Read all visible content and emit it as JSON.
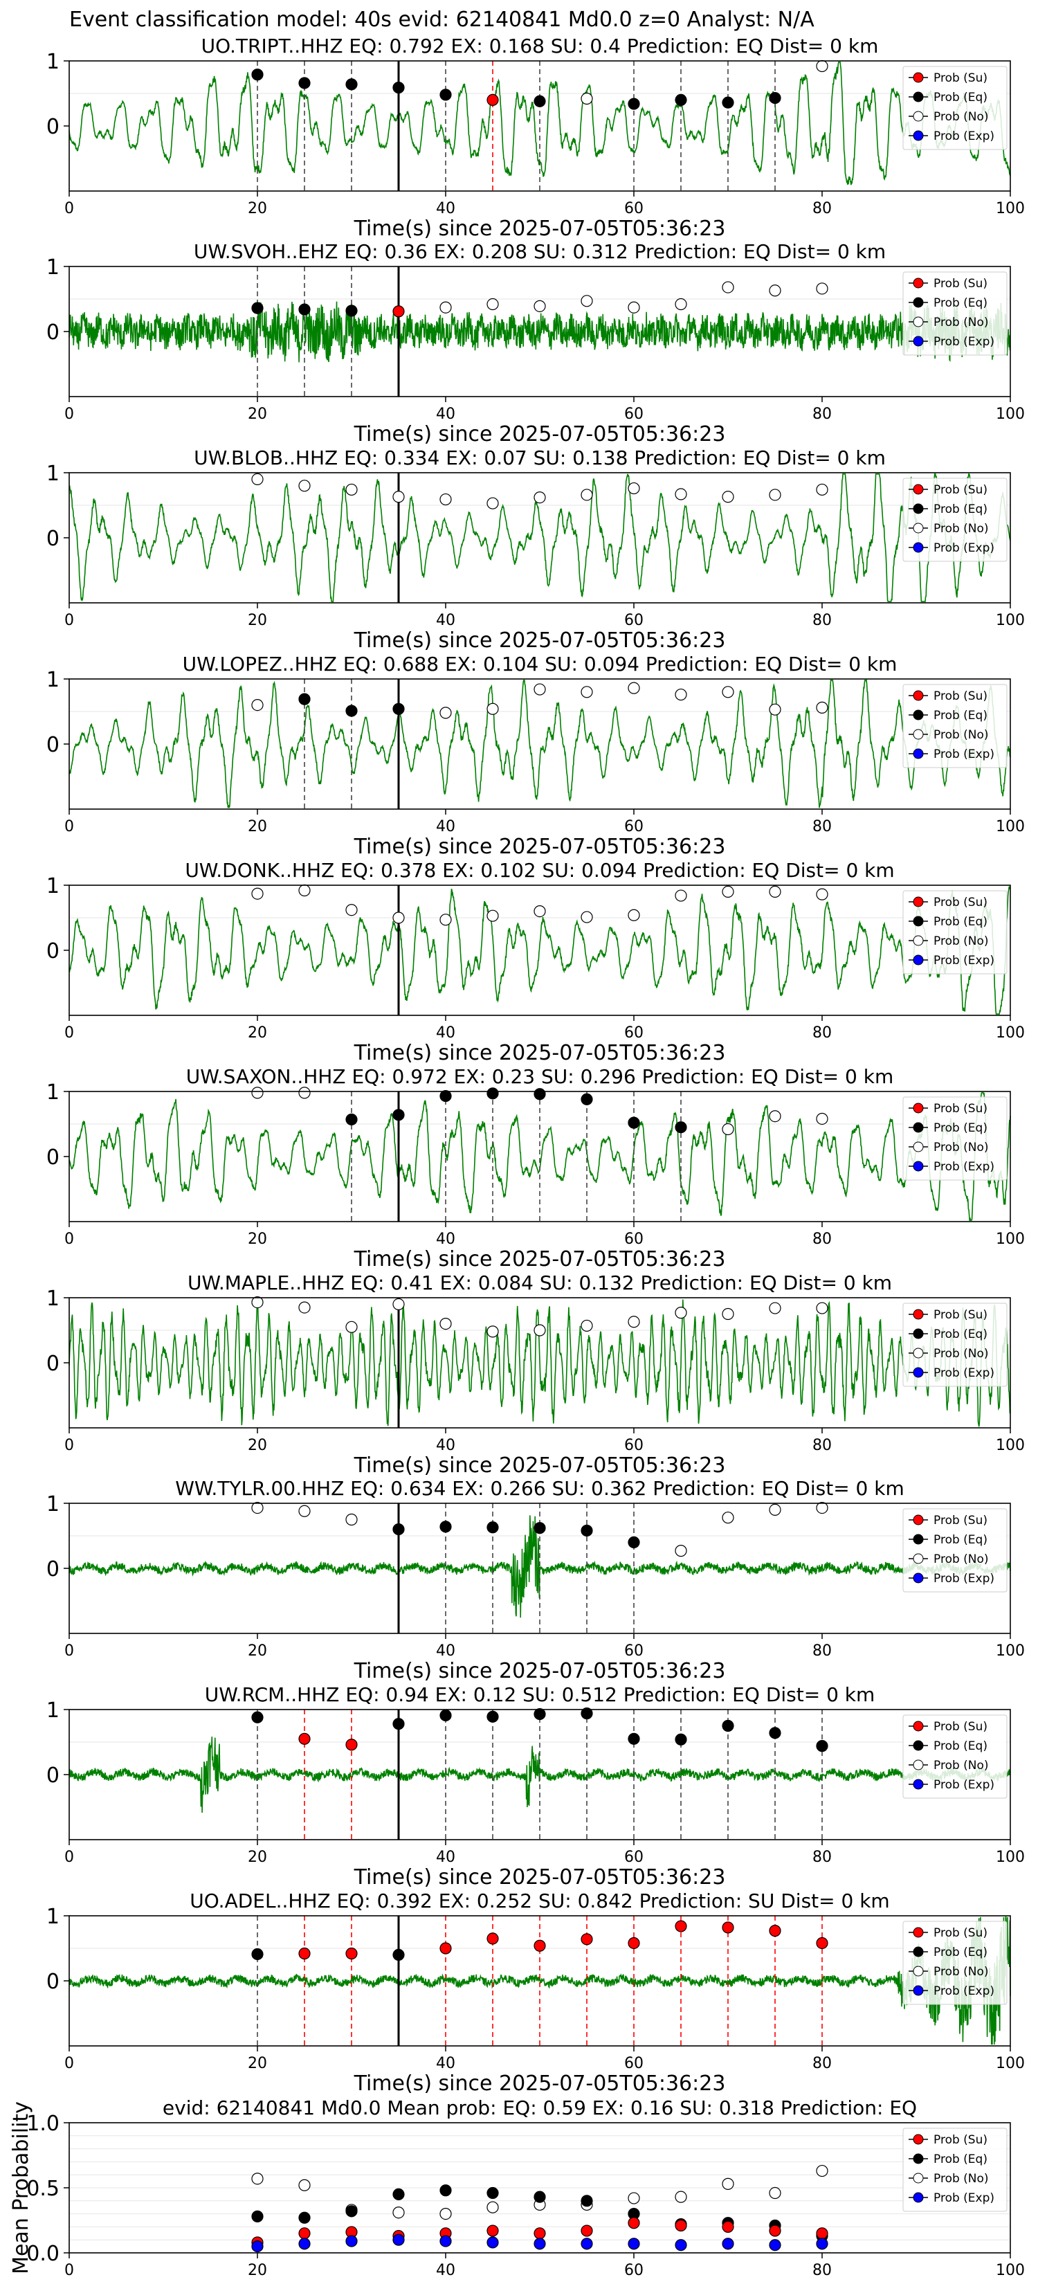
{
  "figure_title": "Event classification model: 40s evid: 62140841 Md0.0 z=0 Analyst: N/A",
  "legend_labels": [
    "Prob (Su)",
    "Prob (Eq)",
    "Prob (No)",
    "Prob (Exp)"
  ],
  "colors": {
    "su": "#ff0000",
    "eq": "#000000",
    "no": "#ffffff",
    "exp": "#0000ff",
    "trace": "#008000"
  },
  "chart_data": [
    {
      "type": "line",
      "title": "UO.TRIPT..HHZ   EQ: 0.792  EX: 0.168  SU: 0.4   Prediction: EQ    Dist= 0 km",
      "xlabel": "Time(s) since 2025-07-05T05:36:23",
      "ylabel": "",
      "xlim": [
        0,
        100
      ],
      "ylim": [
        -1,
        1
      ],
      "xticks": [
        0,
        20,
        40,
        60,
        80,
        100
      ],
      "yticks": [
        0,
        1
      ],
      "trace_style": "low",
      "arrival": 35,
      "markers": {
        "x": [
          20,
          25,
          30,
          35,
          40,
          45,
          50,
          55,
          60,
          65,
          70,
          75,
          80
        ],
        "type": [
          "eq",
          "eq",
          "eq",
          "eq",
          "eq",
          "su",
          "eq",
          "no",
          "eq",
          "eq",
          "eq",
          "eq",
          "no"
        ],
        "prob": [
          0.79,
          0.66,
          0.64,
          0.59,
          0.48,
          0.4,
          0.38,
          0.42,
          0.34,
          0.4,
          0.36,
          0.43,
          0.92
        ]
      }
    },
    {
      "type": "line",
      "title": "UW.SVOH..EHZ   EQ: 0.36  EX: 0.208  SU: 0.312   Prediction: EQ    Dist= 0 km",
      "xlabel": "Time(s) since 2025-07-05T05:36:23",
      "ylabel": "",
      "xlim": [
        0,
        100
      ],
      "ylim": [
        -1,
        1
      ],
      "xticks": [
        0,
        20,
        40,
        60,
        80,
        100
      ],
      "yticks": [
        0,
        1
      ],
      "trace_style": "noise",
      "arrival": 35,
      "markers": {
        "x": [
          20,
          25,
          30,
          35,
          40,
          45,
          50,
          55,
          60,
          65,
          70,
          75,
          80
        ],
        "type": [
          "eq",
          "eq",
          "eq",
          "su",
          "no",
          "no",
          "no",
          "no",
          "no",
          "no",
          "no",
          "no",
          "no"
        ],
        "prob": [
          0.36,
          0.34,
          0.32,
          0.31,
          0.37,
          0.42,
          0.39,
          0.47,
          0.37,
          0.42,
          0.68,
          0.63,
          0.66
        ]
      }
    },
    {
      "type": "line",
      "title": "UW.BLOB..HHZ   EQ: 0.334  EX: 0.07  SU: 0.138   Prediction: EQ    Dist= 0 km",
      "xlabel": "Time(s) since 2025-07-05T05:36:23",
      "ylabel": "",
      "xlim": [
        0,
        100
      ],
      "ylim": [
        -1,
        1
      ],
      "xticks": [
        0,
        20,
        40,
        60,
        80,
        100
      ],
      "yticks": [
        0,
        1
      ],
      "trace_style": "low",
      "arrival": 35,
      "markers": {
        "x": [
          20,
          25,
          30,
          35,
          40,
          45,
          50,
          55,
          60,
          65,
          70,
          75,
          80
        ],
        "type": [
          "no",
          "no",
          "no",
          "no",
          "no",
          "no",
          "no",
          "no",
          "no",
          "no",
          "no",
          "no",
          "no"
        ],
        "prob": [
          0.9,
          0.8,
          0.74,
          0.63,
          0.59,
          0.53,
          0.62,
          0.66,
          0.76,
          0.67,
          0.63,
          0.66,
          0.74
        ]
      }
    },
    {
      "type": "line",
      "title": "UW.LOPEZ..HHZ   EQ: 0.688  EX: 0.104  SU: 0.094   Prediction: EQ    Dist= 0 km",
      "xlabel": "Time(s) since 2025-07-05T05:36:23",
      "ylabel": "",
      "xlim": [
        0,
        100
      ],
      "ylim": [
        -1,
        1
      ],
      "xticks": [
        0,
        20,
        40,
        60,
        80,
        100
      ],
      "yticks": [
        0,
        1
      ],
      "trace_style": "low",
      "arrival": 35,
      "markers": {
        "x": [
          20,
          25,
          30,
          35,
          40,
          45,
          50,
          55,
          60,
          65,
          70,
          75,
          80
        ],
        "type": [
          "no",
          "eq",
          "eq",
          "eq",
          "no",
          "no",
          "no",
          "no",
          "no",
          "no",
          "no",
          "no",
          "no"
        ],
        "prob": [
          0.6,
          0.69,
          0.51,
          0.54,
          0.48,
          0.54,
          0.84,
          0.8,
          0.86,
          0.76,
          0.8,
          0.53,
          0.56
        ]
      }
    },
    {
      "type": "line",
      "title": "UW.DONK..HHZ   EQ: 0.378  EX: 0.102  SU: 0.094   Prediction: EQ    Dist= 0 km",
      "xlabel": "Time(s) since 2025-07-05T05:36:23",
      "ylabel": "",
      "xlim": [
        0,
        100
      ],
      "ylim": [
        -1,
        1
      ],
      "xticks": [
        0,
        20,
        40,
        60,
        80,
        100
      ],
      "yticks": [
        0,
        1
      ],
      "trace_style": "low",
      "arrival": 35,
      "markers": {
        "x": [
          20,
          25,
          30,
          35,
          40,
          45,
          50,
          55,
          60,
          65,
          70,
          75,
          80
        ],
        "type": [
          "no",
          "no",
          "no",
          "no",
          "no",
          "no",
          "no",
          "no",
          "no",
          "no",
          "no",
          "no",
          "no"
        ],
        "prob": [
          0.87,
          0.92,
          0.62,
          0.5,
          0.47,
          0.53,
          0.6,
          0.51,
          0.54,
          0.84,
          0.9,
          0.9,
          0.86
        ]
      }
    },
    {
      "type": "line",
      "title": "UW.SAXON..HHZ   EQ: 0.972  EX: 0.23  SU: 0.296   Prediction: EQ    Dist= 0 km",
      "xlabel": "Time(s) since 2025-07-05T05:36:23",
      "ylabel": "",
      "xlim": [
        0,
        100
      ],
      "ylim": [
        -1,
        1
      ],
      "xticks": [
        0,
        20,
        40,
        60,
        80,
        100
      ],
      "yticks": [
        0,
        1
      ],
      "trace_style": "low",
      "arrival": 35,
      "markers": {
        "x": [
          20,
          25,
          30,
          35,
          40,
          45,
          50,
          55,
          60,
          65,
          70,
          75,
          80
        ],
        "type": [
          "no",
          "no",
          "eq",
          "eq",
          "eq",
          "eq",
          "eq",
          "eq",
          "eq",
          "eq",
          "no",
          "no",
          "no"
        ],
        "prob": [
          0.98,
          0.98,
          0.57,
          0.64,
          0.93,
          0.97,
          0.96,
          0.88,
          0.52,
          0.45,
          0.42,
          0.62,
          0.58
        ]
      }
    },
    {
      "type": "line",
      "title": "UW.MAPLE..HHZ   EQ: 0.41  EX: 0.084  SU: 0.132   Prediction: EQ    Dist= 0 km",
      "xlabel": "Time(s) since 2025-07-05T05:36:23",
      "ylabel": "",
      "xlim": [
        0,
        100
      ],
      "ylim": [
        -1,
        1
      ],
      "xticks": [
        0,
        20,
        40,
        60,
        80,
        100
      ],
      "yticks": [
        0,
        1
      ],
      "trace_style": "high",
      "arrival": 35,
      "markers": {
        "x": [
          20,
          25,
          30,
          35,
          40,
          45,
          50,
          55,
          60,
          65,
          70,
          75,
          80
        ],
        "type": [
          "no",
          "no",
          "no",
          "no",
          "no",
          "no",
          "no",
          "no",
          "no",
          "no",
          "no",
          "no",
          "no"
        ],
        "prob": [
          0.93,
          0.85,
          0.55,
          0.9,
          0.6,
          0.48,
          0.5,
          0.57,
          0.63,
          0.77,
          0.75,
          0.84,
          0.84
        ]
      }
    },
    {
      "type": "line",
      "title": "WW.TYLR.00.HHZ   EQ: 0.634  EX: 0.266  SU: 0.362   Prediction: EQ    Dist= 0 km",
      "xlabel": "Time(s) since 2025-07-05T05:36:23",
      "ylabel": "",
      "xlim": [
        0,
        100
      ],
      "ylim": [
        -1,
        1
      ],
      "xticks": [
        0,
        20,
        40,
        60,
        80,
        100
      ],
      "yticks": [
        0,
        1
      ],
      "trace_style": "quiet",
      "arrival": 35,
      "markers": {
        "x": [
          20,
          25,
          30,
          35,
          40,
          45,
          50,
          55,
          60,
          65,
          70,
          75,
          80
        ],
        "type": [
          "no",
          "no",
          "no",
          "eq",
          "eq",
          "eq",
          "eq",
          "eq",
          "eq",
          "no",
          "no",
          "no",
          "no"
        ],
        "prob": [
          0.93,
          0.88,
          0.75,
          0.6,
          0.64,
          0.63,
          0.62,
          0.58,
          0.4,
          0.27,
          0.78,
          0.9,
          0.93
        ]
      }
    },
    {
      "type": "line",
      "title": "UW.RCM..HHZ   EQ: 0.94  EX: 0.12  SU: 0.512   Prediction: EQ    Dist= 0 km",
      "xlabel": "Time(s) since 2025-07-05T05:36:23",
      "ylabel": "",
      "xlim": [
        0,
        100
      ],
      "ylim": [
        -1,
        1
      ],
      "xticks": [
        0,
        20,
        40,
        60,
        80,
        100
      ],
      "yticks": [
        0,
        1
      ],
      "trace_style": "quiet",
      "arrival": 35,
      "markers": {
        "x": [
          20,
          25,
          30,
          35,
          40,
          45,
          50,
          55,
          60,
          65,
          70,
          75,
          80
        ],
        "type": [
          "eq",
          "su",
          "su",
          "eq",
          "eq",
          "eq",
          "eq",
          "eq",
          "eq",
          "eq",
          "eq",
          "eq",
          "eq"
        ],
        "prob": [
          0.88,
          0.55,
          0.46,
          0.78,
          0.91,
          0.89,
          0.93,
          0.94,
          0.55,
          0.54,
          0.75,
          0.64,
          0.44
        ]
      }
    },
    {
      "type": "line",
      "title": "UO.ADEL..HHZ   EQ: 0.392  EX: 0.252  SU: 0.842   Prediction: SU    Dist= 0 km",
      "xlabel": "Time(s) since 2025-07-05T05:36:23",
      "ylabel": "",
      "xlim": [
        0,
        100
      ],
      "ylim": [
        -1,
        1
      ],
      "xticks": [
        0,
        20,
        40,
        60,
        80,
        100
      ],
      "yticks": [
        0,
        1
      ],
      "trace_style": "quiet",
      "arrival": 35,
      "markers": {
        "x": [
          20,
          25,
          30,
          35,
          40,
          45,
          50,
          55,
          60,
          65,
          70,
          75,
          80
        ],
        "type": [
          "eq",
          "su",
          "su",
          "eq",
          "su",
          "su",
          "su",
          "su",
          "su",
          "su",
          "su",
          "su",
          "su"
        ],
        "prob": [
          0.41,
          0.42,
          0.42,
          0.4,
          0.5,
          0.65,
          0.54,
          0.64,
          0.58,
          0.84,
          0.82,
          0.77,
          0.58
        ]
      }
    },
    {
      "type": "scatter",
      "title": "evid: 62140841  Md0.0   Mean prob:   EQ: 0.59  EX: 0.16  SU: 0.318   Prediction: EQ",
      "xlabel": "",
      "ylabel": "Mean Probability",
      "xlim": [
        0,
        100
      ],
      "ylim": [
        0,
        1
      ],
      "xticks": [
        0,
        20,
        40,
        60,
        80,
        100
      ],
      "yticks": [
        0.0,
        0.5,
        1.0
      ],
      "x": [
        20,
        25,
        30,
        35,
        40,
        45,
        50,
        55,
        60,
        65,
        70,
        75,
        80
      ],
      "series": [
        {
          "name": "Prob (Su)",
          "key": "su",
          "values": [
            0.08,
            0.15,
            0.16,
            0.13,
            0.15,
            0.17,
            0.15,
            0.17,
            0.23,
            0.21,
            0.2,
            0.17,
            0.15
          ]
        },
        {
          "name": "Prob (Eq)",
          "key": "eq",
          "values": [
            0.28,
            0.27,
            0.32,
            0.45,
            0.48,
            0.46,
            0.43,
            0.4,
            0.3,
            0.22,
            0.23,
            0.21,
            0.13
          ]
        },
        {
          "name": "Prob (No)",
          "key": "no",
          "values": [
            0.57,
            0.52,
            0.33,
            0.31,
            0.3,
            0.35,
            0.37,
            0.37,
            0.42,
            0.43,
            0.53,
            0.46,
            0.63
          ]
        },
        {
          "name": "Prob (Exp)",
          "key": "exp",
          "values": [
            0.05,
            0.07,
            0.09,
            0.1,
            0.09,
            0.08,
            0.07,
            0.07,
            0.07,
            0.06,
            0.07,
            0.06,
            0.07
          ]
        }
      ]
    }
  ]
}
